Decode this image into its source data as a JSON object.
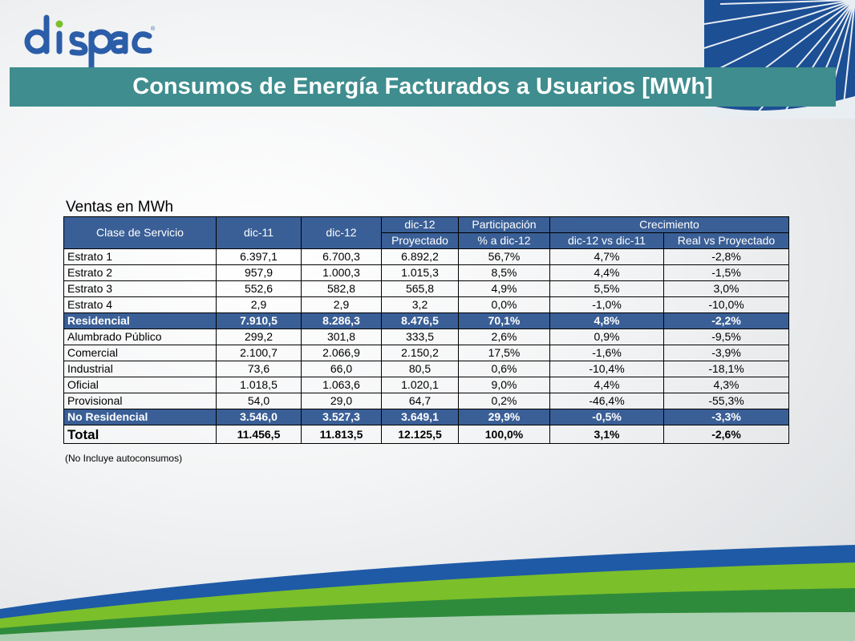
{
  "logo": {
    "text": "dispac",
    "mark": "®"
  },
  "title": "Consumos de Energía Facturados a Usuarios [MWh]",
  "subtitle": "Ventas en MWh",
  "table": {
    "headers": {
      "clase": "Clase de Servicio",
      "dic11": "dic-11",
      "dic12": "dic-12",
      "proyectado_1": "dic-12",
      "proyectado_2": "Proyectado",
      "participacion_1": "Participación",
      "participacion_2": "% a dic-12",
      "crecimiento": "Crecimiento",
      "crec_a": "dic-12 vs dic-11",
      "crec_b": "Real vs Proyectado"
    },
    "rows": [
      {
        "name": "Estrato 1",
        "dic11": "6.397,1",
        "dic12": "6.700,3",
        "proy": "6.892,2",
        "part": "56,7%",
        "crec_a": "4,7%",
        "crec_b": "-2,8%"
      },
      {
        "name": "Estrato 2",
        "dic11": "957,9",
        "dic12": "1.000,3",
        "proy": "1.015,3",
        "part": "8,5%",
        "crec_a": "4,4%",
        "crec_b": "-1,5%"
      },
      {
        "name": "Estrato 3",
        "dic11": "552,6",
        "dic12": "582,8",
        "proy": "565,8",
        "part": "4,9%",
        "crec_a": "5,5%",
        "crec_b": "3,0%"
      },
      {
        "name": "Estrato 4",
        "dic11": "2,9",
        "dic12": "2,9",
        "proy": "3,2",
        "part": "0,0%",
        "crec_a": "-1,0%",
        "crec_b": "-10,0%"
      },
      {
        "name": "Residencial",
        "dic11": "7.910,5",
        "dic12": "8.286,3",
        "proy": "8.476,5",
        "part": "70,1%",
        "crec_a": "4,8%",
        "crec_b": "-2,2%"
      },
      {
        "name": "Alumbrado Público",
        "dic11": "299,2",
        "dic12": "301,8",
        "proy": "333,5",
        "part": "2,6%",
        "crec_a": "0,9%",
        "crec_b": "-9,5%"
      },
      {
        "name": "Comercial",
        "dic11": "2.100,7",
        "dic12": "2.066,9",
        "proy": "2.150,2",
        "part": "17,5%",
        "crec_a": "-1,6%",
        "crec_b": "-3,9%"
      },
      {
        "name": "Industrial",
        "dic11": "73,6",
        "dic12": "66,0",
        "proy": "80,5",
        "part": "0,6%",
        "crec_a": "-10,4%",
        "crec_b": "-18,1%"
      },
      {
        "name": "Oficial",
        "dic11": "1.018,5",
        "dic12": "1.063,6",
        "proy": "1.020,1",
        "part": "9,0%",
        "crec_a": "4,4%",
        "crec_b": "4,3%"
      },
      {
        "name": "Provisional",
        "dic11": "54,0",
        "dic12": "29,0",
        "proy": "64,7",
        "part": "0,2%",
        "crec_a": "-46,4%",
        "crec_b": "-55,3%"
      },
      {
        "name": "No Residencial",
        "dic11": "3.546,0",
        "dic12": "3.527,3",
        "proy": "3.649,1",
        "part": "29,9%",
        "crec_a": "-0,5%",
        "crec_b": "-3,3%"
      },
      {
        "name": "Total",
        "dic11": "11.456,5",
        "dic12": "11.813,5",
        "proy": "12.125,5",
        "part": "100,0%",
        "crec_a": "3,1%",
        "crec_b": "-2,6%"
      }
    ]
  },
  "note": "(No Incluye autoconsumos)",
  "colors": {
    "title_bar": "#3f8d8e",
    "table_header": "#3a5f96",
    "logo": "#2b5da8",
    "wave_green": "#7bbf2a",
    "wave_blue": "#1f5aa6"
  }
}
